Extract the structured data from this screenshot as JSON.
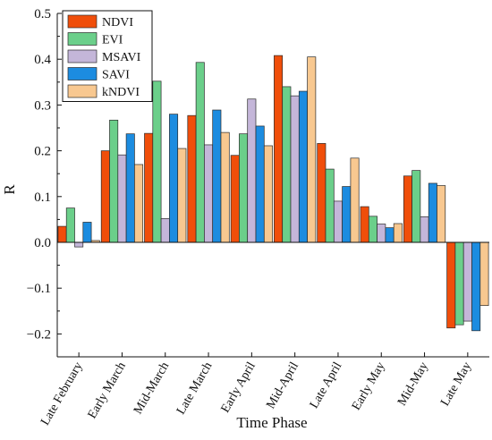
{
  "chart_data": {
    "type": "bar",
    "title": "",
    "xlabel": "Time Phase",
    "ylabel": "R",
    "ylim": [
      -0.25,
      0.5
    ],
    "yticks": [
      -0.2,
      -0.1,
      0.0,
      0.1,
      0.2,
      0.3,
      0.4,
      0.5
    ],
    "ytick_labels": [
      "−0.2",
      "−0.1",
      "0.0",
      "0.1",
      "0.2",
      "0.3",
      "0.4",
      "0.5"
    ],
    "grid": false,
    "legend_position": "top-left",
    "categories": [
      "Late February",
      "Early March",
      "Mid-March",
      "Late March",
      "Early April",
      "Mid-April",
      "Late April",
      "Early May",
      "Mid-May",
      "Late May"
    ],
    "series": [
      {
        "name": "NDVI",
        "color": "#f04e0a",
        "values": [
          0.035,
          0.2,
          0.238,
          0.277,
          0.19,
          0.408,
          0.216,
          0.078,
          0.145,
          -0.187
        ]
      },
      {
        "name": "EVI",
        "color": "#6bcf8a",
        "values": [
          0.075,
          0.267,
          0.352,
          0.393,
          0.237,
          0.34,
          0.16,
          0.057,
          0.157,
          -0.18
        ]
      },
      {
        "name": "MSAVI",
        "color": "#c4b6d9",
        "values": [
          -0.01,
          0.191,
          0.052,
          0.213,
          0.313,
          0.32,
          0.09,
          0.04,
          0.056,
          -0.172
        ]
      },
      {
        "name": "SAVI",
        "color": "#1c8ce0",
        "values": [
          0.044,
          0.237,
          0.28,
          0.289,
          0.254,
          0.33,
          0.122,
          0.032,
          0.129,
          -0.193
        ]
      },
      {
        "name": "kNDVI",
        "color": "#f8c890",
        "values": [
          0.004,
          0.17,
          0.205,
          0.24,
          0.211,
          0.405,
          0.184,
          0.041,
          0.124,
          -0.138
        ]
      }
    ]
  }
}
